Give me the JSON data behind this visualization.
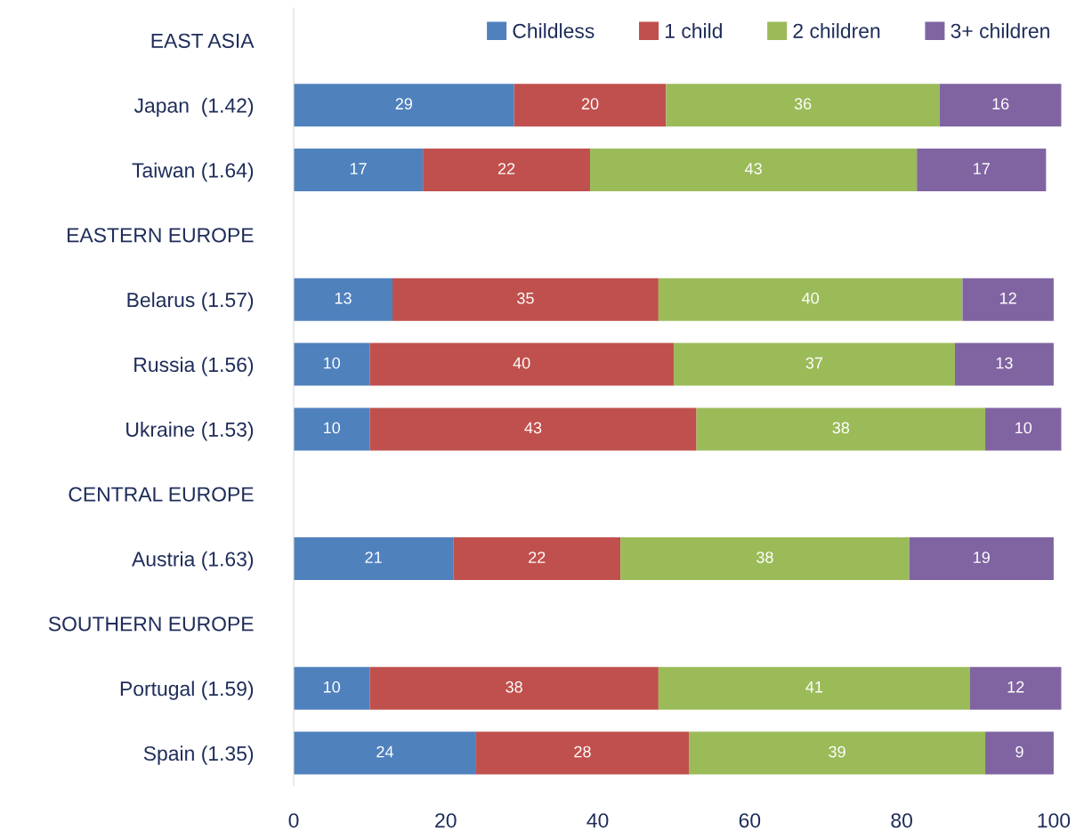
{
  "chart_data": {
    "type": "bar",
    "orientation": "horizontal",
    "stacked": true,
    "data_labels": true,
    "legend": "top right",
    "grid": false,
    "categories": [
      "EAST ASIA",
      "Japan  (1.42)",
      "Taiwan (1.64)",
      "EASTERN EUROPE",
      "Belarus (1.57)",
      "Russia (1.56)",
      "Ukraine (1.53)",
      "CENTRAL EUROPE",
      "Austria (1.63)",
      "SOUTHERN EUROPE",
      "Portugal (1.59)",
      "Spain (1.35)"
    ],
    "series": [
      {
        "name": "Childless",
        "color": "#4f81bd",
        "values": [
          null,
          29,
          17,
          null,
          13,
          10,
          10,
          null,
          21,
          null,
          10,
          24
        ]
      },
      {
        "name": "1 child",
        "color": "#c0504d",
        "values": [
          null,
          20,
          22,
          null,
          35,
          40,
          43,
          null,
          22,
          null,
          38,
          28
        ]
      },
      {
        "name": "2 children",
        "color": "#9bbb59",
        "values": [
          null,
          36,
          43,
          null,
          40,
          37,
          38,
          null,
          38,
          null,
          41,
          39
        ]
      },
      {
        "name": "3+ children",
        "color": "#8064a2",
        "values": [
          null,
          16,
          17,
          null,
          12,
          13,
          10,
          null,
          19,
          null,
          12,
          9
        ]
      }
    ],
    "xlim": [
      0,
      102
    ],
    "xticks": [
      0,
      20,
      40,
      60,
      80,
      100
    ]
  }
}
